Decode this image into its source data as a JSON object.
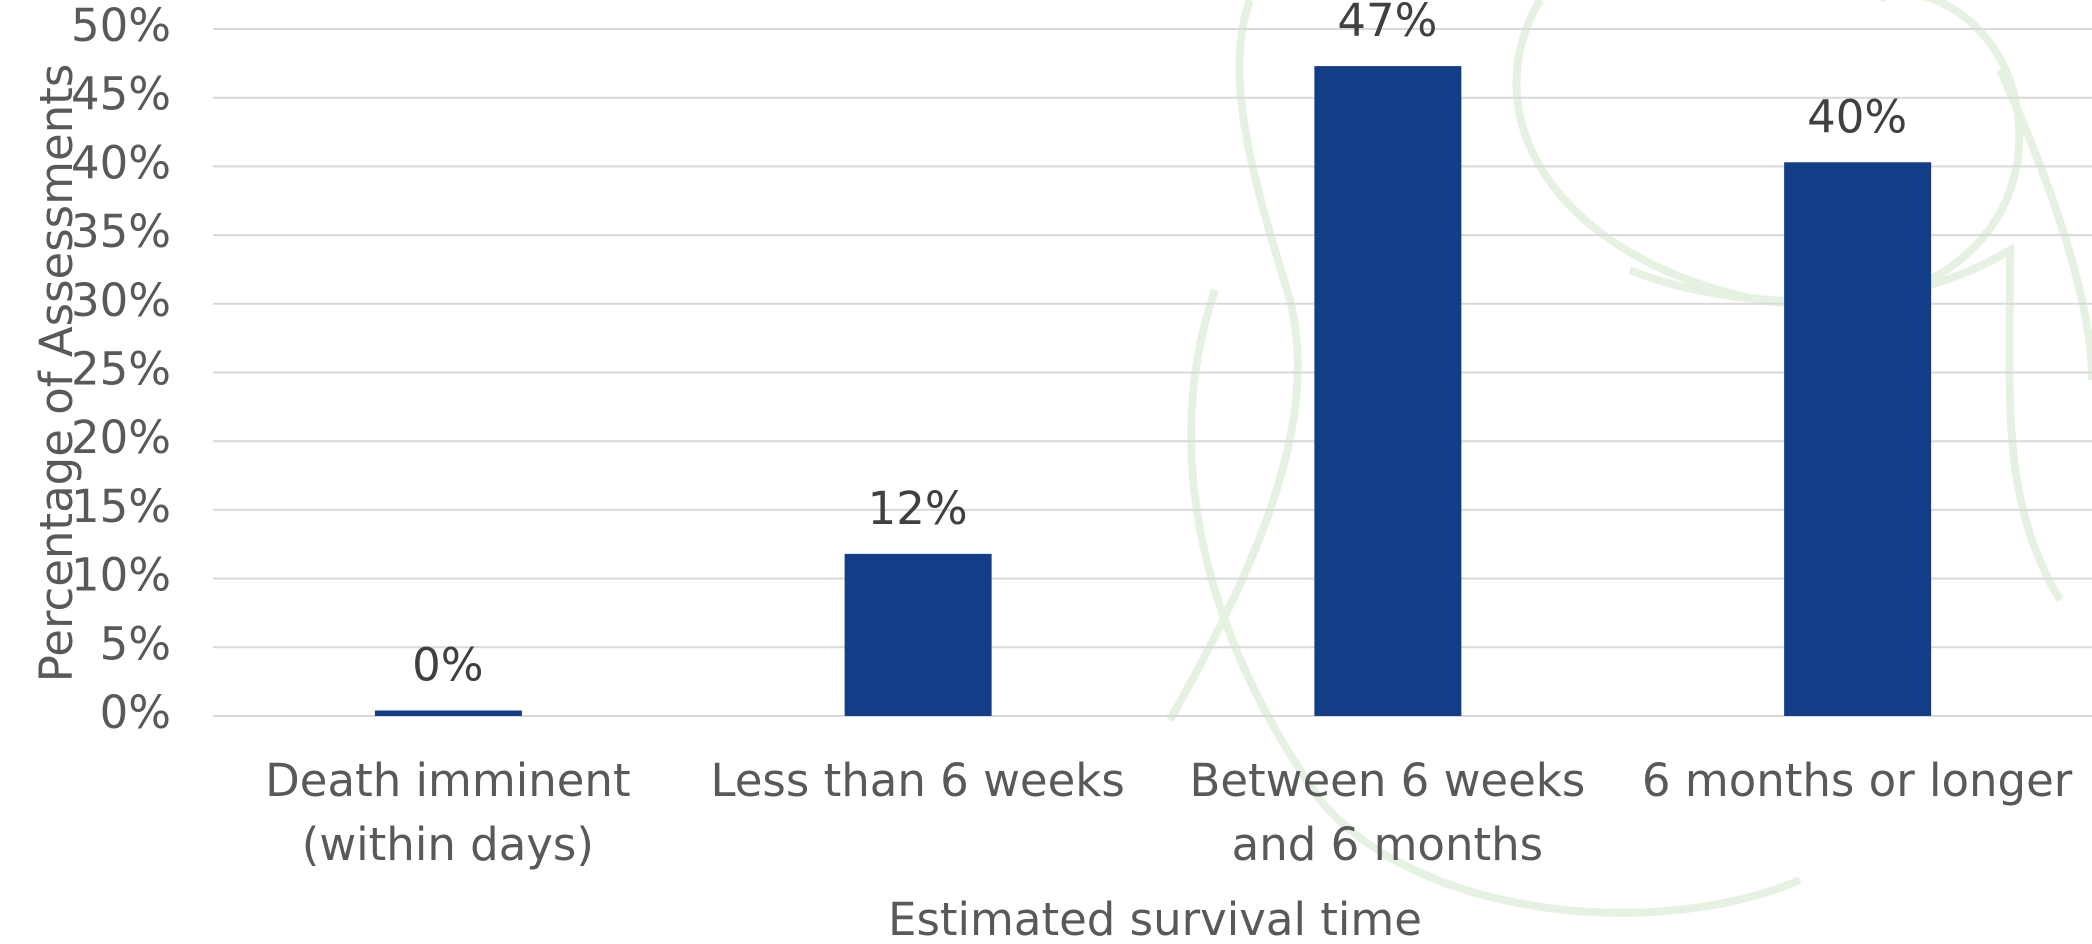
{
  "chart_data": {
    "type": "bar",
    "categories": [
      [
        "Death imminent",
        "(within days)"
      ],
      [
        "Less than 6 weeks"
      ],
      [
        "Between 6 weeks",
        "and 6 months"
      ],
      [
        "6 months or longer"
      ]
    ],
    "values": [
      0.4,
      11.8,
      47.3,
      40.3
    ],
    "value_labels": [
      "0%",
      "12%",
      "47%",
      "40%"
    ],
    "color": "#133d87",
    "ylim": [
      0,
      50
    ],
    "yticks": [
      {
        "value": 0,
        "label": "0%"
      },
      {
        "value": 5,
        "label": "5%"
      },
      {
        "value": 10,
        "label": "10%"
      },
      {
        "value": 15,
        "label": "15%"
      },
      {
        "value": 20,
        "label": "20%"
      },
      {
        "value": 25,
        "label": "25%"
      },
      {
        "value": 30,
        "label": "30%"
      },
      {
        "value": 35,
        "label": "35%"
      },
      {
        "value": 40,
        "label": "40%"
      },
      {
        "value": 45,
        "label": "45%"
      },
      {
        "value": 50,
        "label": "50%"
      }
    ],
    "grid": true,
    "xlabel": "Estimated survival time",
    "ylabel": "Percentage of Assessments"
  }
}
